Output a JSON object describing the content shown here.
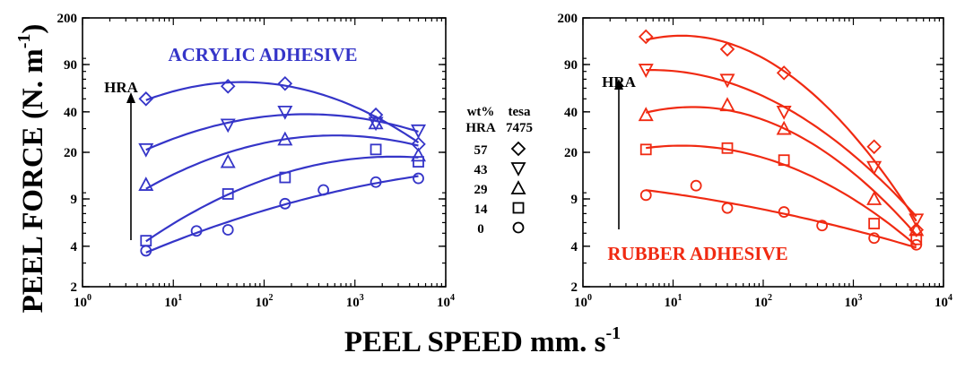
{
  "figure": {
    "ylabel": "PEEL FORCE (N. m",
    "ylabel_sup": "-1",
    "ylabel_end": ")",
    "xlabel": "PEEL SPEED mm. s",
    "xlabel_sup": "-1"
  },
  "legend": {
    "header_left": "wt%",
    "header_right": "tesa",
    "subheader_left": "HRA",
    "subheader_right": "7475",
    "entries": [
      {
        "label": "57",
        "marker": "diamond"
      },
      {
        "label": "43",
        "marker": "triangle-down"
      },
      {
        "label": "29",
        "marker": "triangle-up"
      },
      {
        "label": "14",
        "marker": "square"
      },
      {
        "label": "0",
        "marker": "circle"
      }
    ]
  },
  "chart_data": [
    {
      "type": "scatter",
      "title": "ACRYLIC ADHESIVE",
      "color": "#3535c8",
      "arrow_label": "HRA",
      "x_scale": "log",
      "y_scale": "log",
      "xlim": [
        1,
        10000
      ],
      "ylim": [
        2,
        200
      ],
      "x_ticks": [
        {
          "base": "10",
          "exp": "0"
        },
        {
          "base": "10",
          "exp": "1"
        },
        {
          "base": "10",
          "exp": "2"
        },
        {
          "base": "10",
          "exp": "3"
        },
        {
          "base": "10",
          "exp": "4"
        }
      ],
      "y_ticks": [
        "2",
        "4",
        "9",
        "20",
        "40",
        "90",
        "200"
      ],
      "series": [
        {
          "label": "57",
          "marker": "diamond",
          "x": [
            5,
            40,
            170,
            1700,
            5000
          ],
          "y": [
            50,
            62,
            65,
            38,
            23
          ]
        },
        {
          "label": "43",
          "marker": "triangle-down",
          "x": [
            5,
            40,
            170,
            1700,
            5000
          ],
          "y": [
            21,
            32,
            40,
            33,
            29
          ]
        },
        {
          "label": "29",
          "marker": "triangle-up",
          "x": [
            5,
            40,
            170,
            1700,
            5000
          ],
          "y": [
            11.5,
            17,
            25,
            33,
            19
          ]
        },
        {
          "label": "14",
          "marker": "square",
          "x": [
            5,
            40,
            170,
            1700,
            5000
          ],
          "y": [
            4.4,
            9.8,
            13,
            21,
            17
          ]
        },
        {
          "label": "0",
          "marker": "circle",
          "x": [
            5,
            18,
            40,
            170,
            450,
            1700,
            5000
          ],
          "y": [
            3.7,
            5.2,
            5.3,
            8.3,
            10.5,
            12,
            12.8
          ]
        }
      ]
    },
    {
      "type": "scatter",
      "title": "RUBBER ADHESIVE",
      "color": "#f02a12",
      "arrow_label": "HRA",
      "x_scale": "log",
      "y_scale": "log",
      "xlim": [
        1,
        10000
      ],
      "ylim": [
        2,
        200
      ],
      "x_ticks": [
        {
          "base": "10",
          "exp": "0"
        },
        {
          "base": "10",
          "exp": "1"
        },
        {
          "base": "10",
          "exp": "2"
        },
        {
          "base": "10",
          "exp": "3"
        },
        {
          "base": "10",
          "exp": "4"
        }
      ],
      "y_ticks": [
        "2",
        "4",
        "9",
        "20",
        "40",
        "90",
        "200"
      ],
      "series": [
        {
          "label": "57",
          "marker": "diamond",
          "x": [
            5,
            40,
            170,
            1700,
            5000
          ],
          "y": [
            145,
            117,
            78,
            22,
            5.3
          ]
        },
        {
          "label": "43",
          "marker": "triangle-down",
          "x": [
            5,
            40,
            170,
            1700,
            5000
          ],
          "y": [
            82,
            69,
            40,
            15.5,
            6.3
          ]
        },
        {
          "label": "29",
          "marker": "triangle-up",
          "x": [
            5,
            40,
            170,
            1700,
            5000
          ],
          "y": [
            38,
            45,
            30,
            9,
            5.3
          ]
        },
        {
          "label": "14",
          "marker": "square",
          "x": [
            5,
            40,
            170,
            1700,
            5000
          ],
          "y": [
            21,
            21.5,
            17.5,
            5.9,
            4.5
          ]
        },
        {
          "label": "0",
          "marker": "circle",
          "x": [
            5,
            18,
            40,
            170,
            450,
            1700,
            5000
          ],
          "y": [
            9.6,
            11.3,
            7.7,
            7.2,
            5.7,
            4.6,
            4.1
          ]
        }
      ]
    }
  ]
}
